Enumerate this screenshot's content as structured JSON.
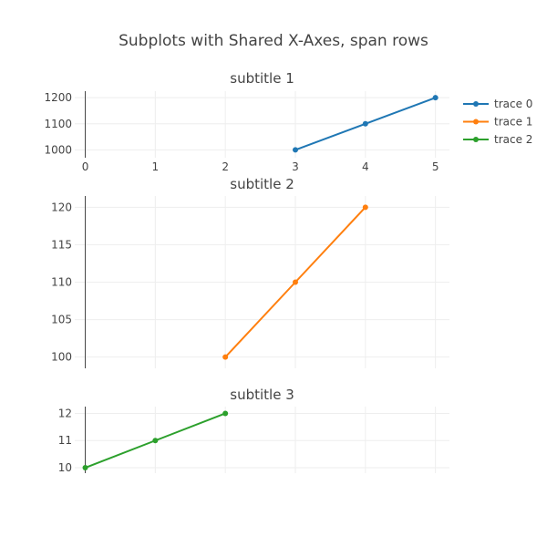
{
  "chart_data": {
    "type": "line",
    "title": "Subplots with Shared X-Axes, span rows",
    "xlim": [
      -0.15,
      5.2
    ],
    "x_ticks": [
      0,
      1,
      2,
      3,
      4,
      5
    ],
    "x_tick_labels": [
      "0",
      "1",
      "2",
      "3",
      "4",
      "5"
    ],
    "grid": true,
    "legend": {
      "placement": "top-right",
      "entries": [
        "trace 0",
        "trace 1",
        "trace 2"
      ]
    },
    "subplots": [
      {
        "subtitle": "subtitle 1",
        "ylim": [
          970,
          1225
        ],
        "y_ticks": [
          1000,
          1100,
          1200
        ],
        "y_tick_labels": [
          "1000",
          "1100",
          "1200"
        ],
        "show_x_tick_labels": true,
        "series": [
          {
            "name": "trace 0",
            "color": "#1f77b4",
            "x": [
              3,
              4,
              5
            ],
            "y": [
              1000,
              1100,
              1200
            ]
          }
        ]
      },
      {
        "subtitle": "subtitle 2",
        "ylim": [
          98.5,
          121.5
        ],
        "y_ticks": [
          100,
          105,
          110,
          115,
          120
        ],
        "y_tick_labels": [
          "100",
          "105",
          "110",
          "115",
          "120"
        ],
        "show_x_tick_labels": false,
        "series": [
          {
            "name": "trace 1",
            "color": "#ff7f0e",
            "x": [
              2,
              3,
              4
            ],
            "y": [
              100,
              110,
              120
            ]
          }
        ]
      },
      {
        "subtitle": "subtitle 3",
        "ylim": [
          9.8,
          12.25
        ],
        "y_ticks": [
          10,
          11,
          12
        ],
        "y_tick_labels": [
          "10",
          "11",
          "12"
        ],
        "show_x_tick_labels": false,
        "series": [
          {
            "name": "trace 2",
            "color": "#2ca02c",
            "x": [
              0,
              1,
              2
            ],
            "y": [
              10,
              11,
              12
            ]
          }
        ]
      }
    ]
  }
}
